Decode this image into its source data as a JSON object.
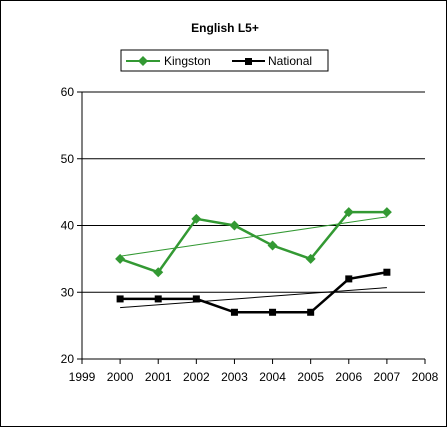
{
  "chart_data": {
    "type": "line",
    "title": "English L5+",
    "xlabel": "",
    "ylabel": "",
    "x_ticks": [
      "1999",
      "2000",
      "2001",
      "2002",
      "2003",
      "2004",
      "2005",
      "2006",
      "2007",
      "2008"
    ],
    "x": [
      2000,
      2001,
      2002,
      2003,
      2004,
      2005,
      2006,
      2007
    ],
    "xlim": [
      1999,
      2008
    ],
    "ylim": [
      20,
      60
    ],
    "y_ticks": [
      "20",
      "30",
      "40",
      "50",
      "60"
    ],
    "grid": "horizontal major lines",
    "legend_position": "top",
    "series": [
      {
        "name": "Kingston",
        "color": "#339933",
        "marker": "diamond",
        "values": [
          35,
          33,
          41,
          40,
          37,
          35,
          42,
          42
        ],
        "trendline": [
          35.4,
          41.3
        ]
      },
      {
        "name": "National",
        "color": "#000000",
        "marker": "square",
        "values": [
          29,
          29,
          29,
          27,
          27,
          27,
          32,
          33
        ],
        "trendline": [
          27.7,
          30.7
        ]
      }
    ]
  }
}
